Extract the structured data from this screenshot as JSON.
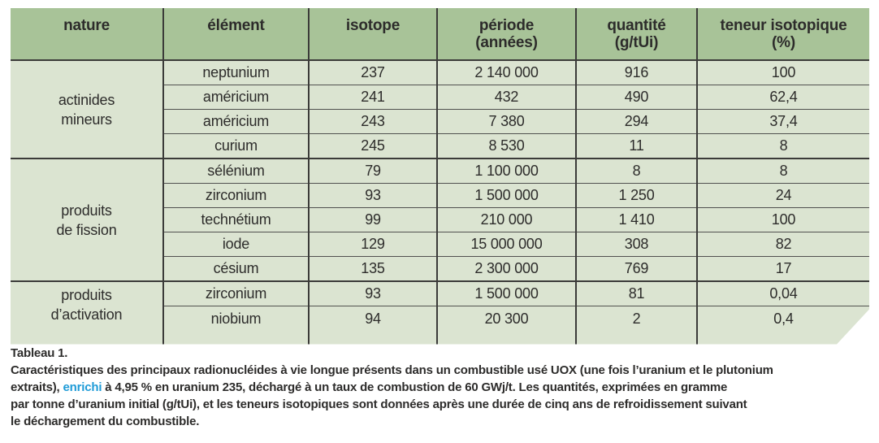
{
  "table": {
    "headers": [
      {
        "line1": "nature",
        "line2": ""
      },
      {
        "line1": "élément",
        "line2": ""
      },
      {
        "line1": "isotope",
        "line2": ""
      },
      {
        "line1": "période",
        "line2": "(années)"
      },
      {
        "line1": "quantité",
        "line2": "(g/tUi)"
      },
      {
        "line1": "teneur isotopique",
        "line2": "(%)"
      }
    ],
    "groups": [
      {
        "nature_line1": "actinides",
        "nature_line2": "mineurs",
        "rows": [
          {
            "element": "neptunium",
            "isotope": "237",
            "periode": "2 140 000",
            "quantite": "916",
            "teneur": "100"
          },
          {
            "element": "américium",
            "isotope": "241",
            "periode": "432",
            "quantite": "490",
            "teneur": "62,4"
          },
          {
            "element": "américium",
            "isotope": "243",
            "periode": "7 380",
            "quantite": "294",
            "teneur": "37,4"
          },
          {
            "element": "curium",
            "isotope": "245",
            "periode": "8 530",
            "quantite": "11",
            "teneur": "8"
          }
        ]
      },
      {
        "nature_line1": "produits",
        "nature_line2": "de fission",
        "rows": [
          {
            "element": "sélénium",
            "isotope": "79",
            "periode": "1 100 000",
            "quantite": "8",
            "teneur": "8"
          },
          {
            "element": "zirconium",
            "isotope": "93",
            "periode": "1 500 000",
            "quantite": "1 250",
            "teneur": "24"
          },
          {
            "element": "technétium",
            "isotope": "99",
            "periode": "210 000",
            "quantite": "1 410",
            "teneur": "100"
          },
          {
            "element": "iode",
            "isotope": "129",
            "periode": "15 000 000",
            "quantite": "308",
            "teneur": "82"
          },
          {
            "element": "césium",
            "isotope": "135",
            "periode": "2 300 000",
            "quantite": "769",
            "teneur": "17"
          }
        ]
      },
      {
        "nature_line1": "produits",
        "nature_line2": "d’activation",
        "rows": [
          {
            "element": "zirconium",
            "isotope": "93",
            "periode": "1 500 000",
            "quantite": "81",
            "teneur": "0,04"
          },
          {
            "element": "niobium",
            "isotope": "94",
            "periode": "20 300",
            "quantite": "2",
            "teneur": "0,4"
          }
        ]
      }
    ]
  },
  "caption": {
    "title": "Tableau 1.",
    "line1": "Caractéristiques des principaux radionucléides à vie longue présents dans un combustible usé UOX (une fois l’uranium et le plutonium",
    "line2_before": "extraits), ",
    "line2_link": "enrichi",
    "line2_after": " à 4,95 % en uranium 235, déchargé à un taux de combustion de 60 GWj/t. Les quantités, exprimées en gramme",
    "line3": "par tonne d’uranium initial (g/tUi), et les teneurs isotopiques sont données après une durée de cinq ans de refroidissement suivant",
    "line4": "le déchargement du combustible."
  },
  "colors": {
    "header_bg": "#a8c398",
    "row_bg": "#dbe4d1",
    "line_major": "#3b3b39",
    "line_minor": "#51514f",
    "text": "#2d2c2b",
    "link_blue": "#1e9bd7"
  }
}
